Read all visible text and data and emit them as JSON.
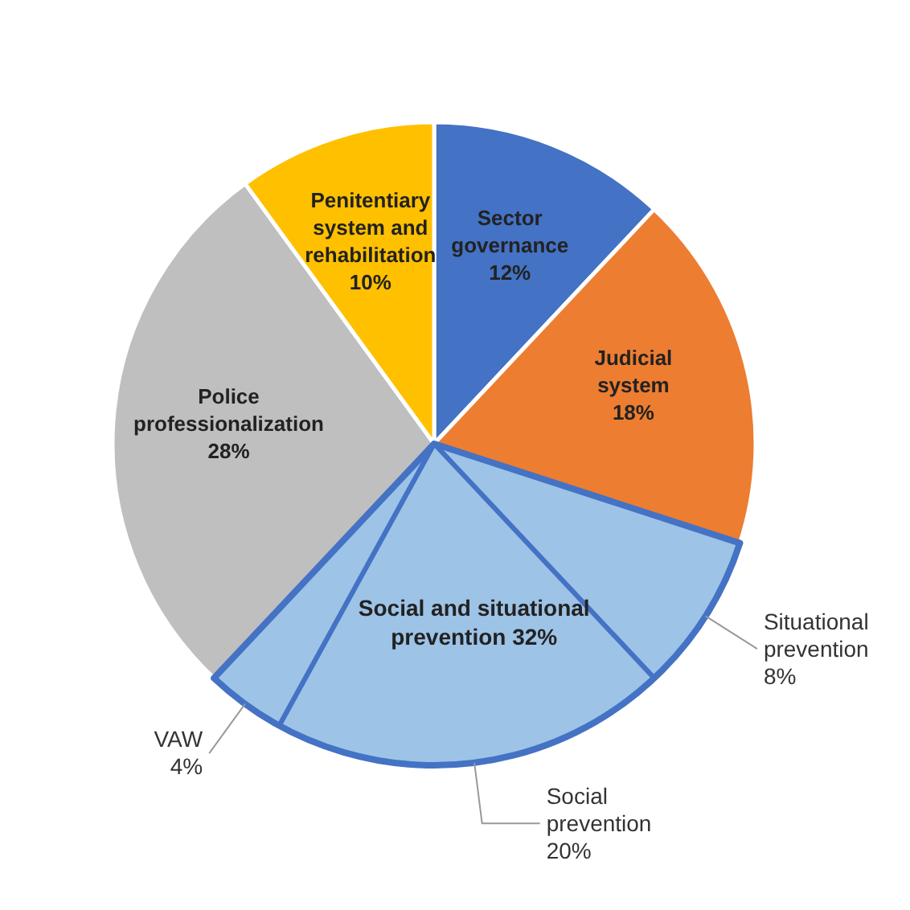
{
  "chart_data": {
    "type": "pie",
    "categories": [
      "Sector governance",
      "Judicial system",
      "Situational prevention",
      "Social prevention",
      "VAW",
      "Police professionalization",
      "Penitentiary system and rehabilitation"
    ],
    "values": [
      12,
      18,
      8,
      20,
      4,
      28,
      10
    ],
    "value_labels": [
      "12%",
      "18%",
      "8%",
      "20%",
      "4%",
      "28%",
      "10%"
    ],
    "colors": [
      "#4472c4",
      "#ed7d31",
      "#9dc3e6",
      "#9dc3e6",
      "#9dc3e6",
      "#bfbfbf",
      "#ffc000"
    ],
    "annotations": [
      "Social and situational prevention 32%"
    ]
  }
}
